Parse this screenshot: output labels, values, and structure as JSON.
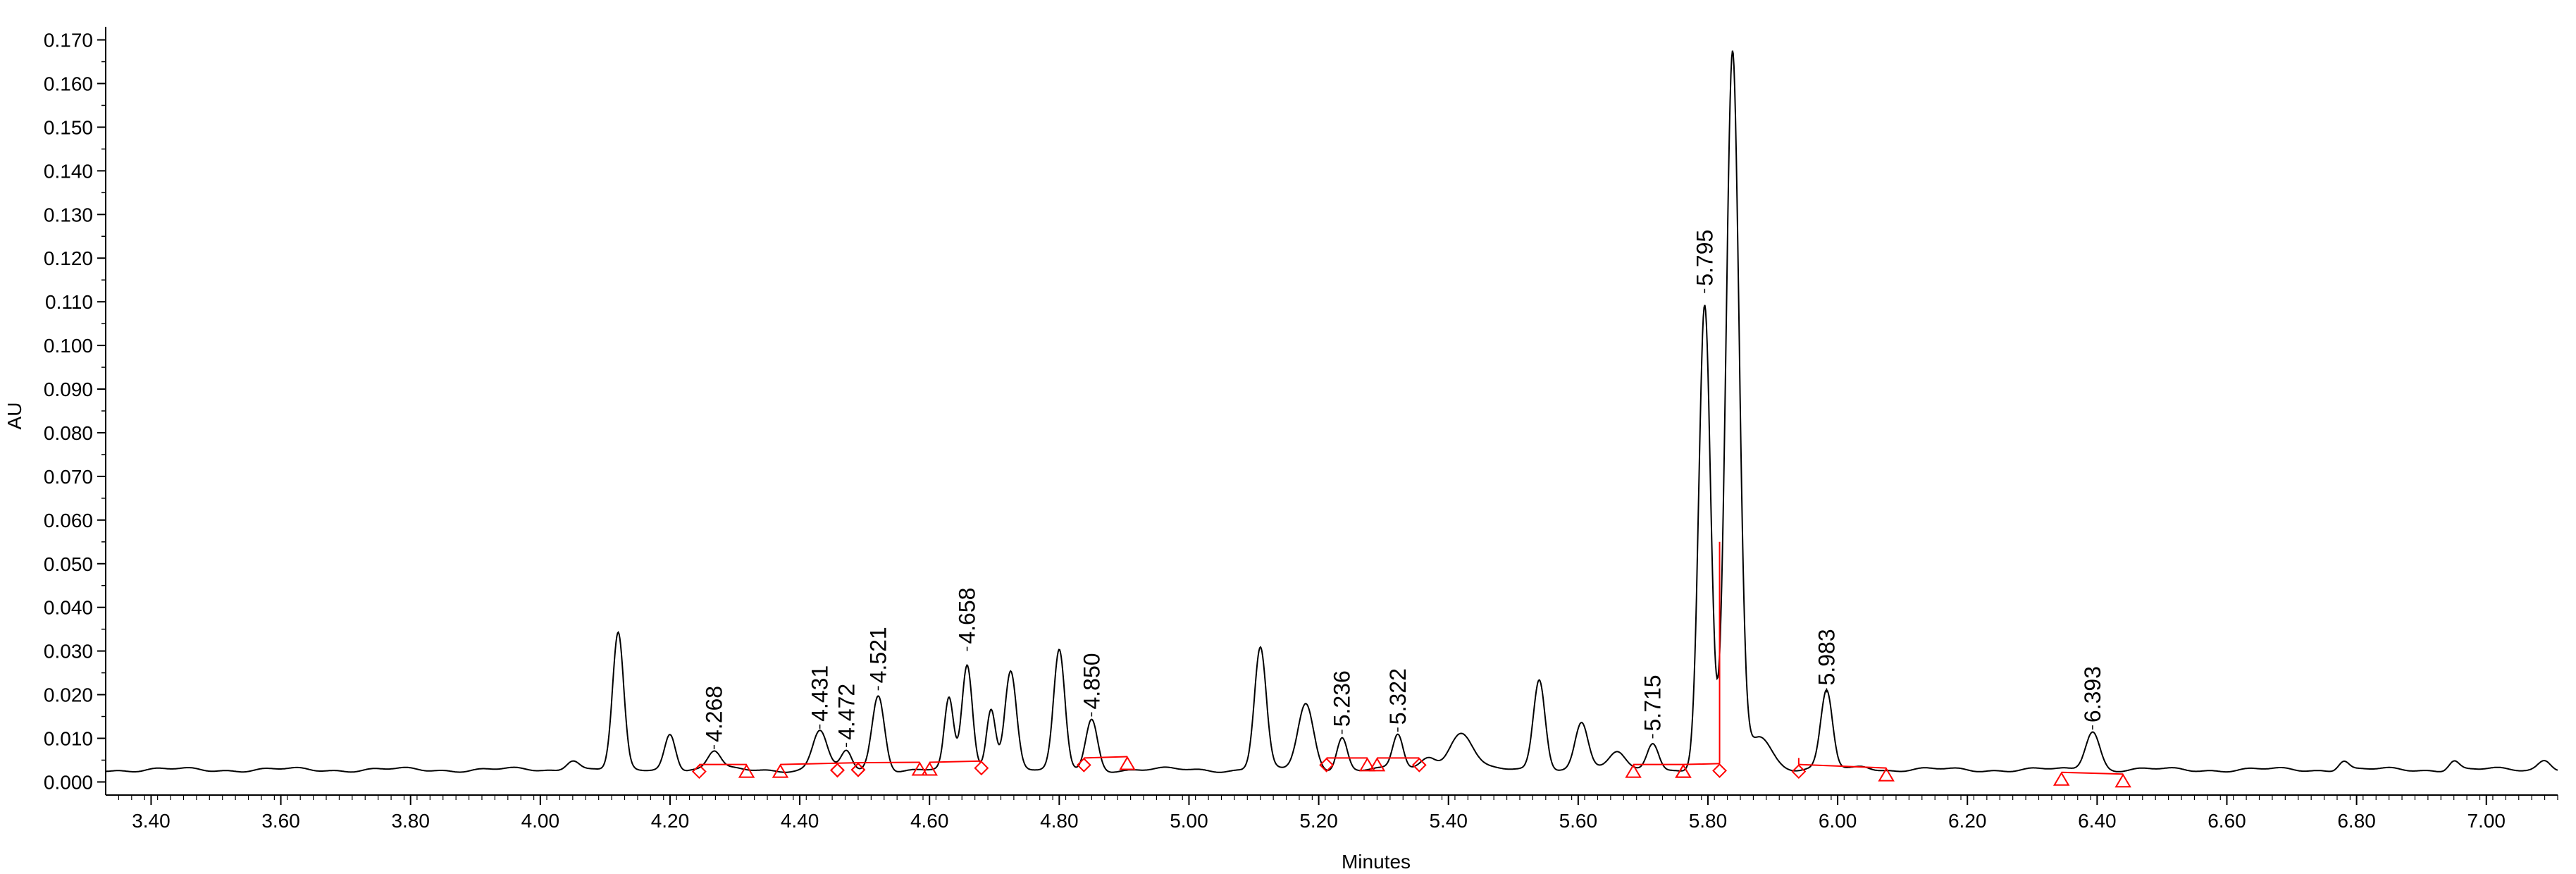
{
  "chart_data": {
    "type": "line",
    "xlabel": "Minutes",
    "ylabel": "AU",
    "xlim": [
      3.33,
      7.11
    ],
    "ylim": [
      -0.003,
      0.173
    ],
    "x_ticks": [
      "3.40",
      "3.60",
      "3.80",
      "4.00",
      "4.20",
      "4.40",
      "4.60",
      "4.80",
      "5.00",
      "5.20",
      "5.40",
      "5.60",
      "5.80",
      "6.00",
      "6.20",
      "6.40",
      "6.60",
      "6.80",
      "7.00"
    ],
    "y_ticks": [
      "0.000",
      "0.010",
      "0.020",
      "0.030",
      "0.040",
      "0.050",
      "0.060",
      "0.070",
      "0.080",
      "0.090",
      "0.100",
      "0.110",
      "0.120",
      "0.130",
      "0.140",
      "0.150",
      "0.160",
      "0.170"
    ],
    "grid": false,
    "line_color": "#000000",
    "integration_color": "#ff0000",
    "baseline": 0.0028,
    "peaks": [
      {
        "rt": 4.05,
        "height": 0.0025,
        "width": 0.01
      },
      {
        "rt": 4.12,
        "height": 0.031,
        "width": 0.0085
      },
      {
        "rt": 4.2,
        "height": 0.0085,
        "width": 0.0085
      },
      {
        "rt": 4.268,
        "height": 0.0042,
        "width": 0.01
      },
      {
        "rt": 4.431,
        "height": 0.009,
        "width": 0.011
      },
      {
        "rt": 4.472,
        "height": 0.004,
        "width": 0.008
      },
      {
        "rt": 4.521,
        "height": 0.017,
        "width": 0.0095
      },
      {
        "rt": 4.63,
        "height": 0.016,
        "width": 0.007
      },
      {
        "rt": 4.658,
        "height": 0.024,
        "width": 0.008
      },
      {
        "rt": 4.695,
        "height": 0.014,
        "width": 0.007
      },
      {
        "rt": 4.725,
        "height": 0.023,
        "width": 0.009
      },
      {
        "rt": 4.8,
        "height": 0.027,
        "width": 0.0085
      },
      {
        "rt": 4.85,
        "height": 0.0115,
        "width": 0.009
      },
      {
        "rt": 5.11,
        "height": 0.028,
        "width": 0.009
      },
      {
        "rt": 5.18,
        "height": 0.015,
        "width": 0.012
      },
      {
        "rt": 5.236,
        "height": 0.0075,
        "width": 0.008
      },
      {
        "rt": 5.322,
        "height": 0.008,
        "width": 0.008
      },
      {
        "rt": 5.37,
        "height": 0.003,
        "width": 0.012
      },
      {
        "rt": 5.42,
        "height": 0.0085,
        "width": 0.018
      },
      {
        "rt": 5.54,
        "height": 0.021,
        "width": 0.009
      },
      {
        "rt": 5.605,
        "height": 0.011,
        "width": 0.01
      },
      {
        "rt": 5.66,
        "height": 0.004,
        "width": 0.012
      },
      {
        "rt": 5.715,
        "height": 0.0065,
        "width": 0.009
      },
      {
        "rt": 5.795,
        "height": 0.106,
        "width": 0.009
      },
      {
        "rt": 5.838,
        "height": 0.164,
        "width": 0.01
      },
      {
        "rt": 5.88,
        "height": 0.008,
        "width": 0.018
      },
      {
        "rt": 5.983,
        "height": 0.018,
        "width": 0.009
      },
      {
        "rt": 6.04,
        "height": 0.001,
        "width": 0.012
      },
      {
        "rt": 6.393,
        "height": 0.009,
        "width": 0.011
      },
      {
        "rt": 6.78,
        "height": 0.0022,
        "width": 0.008
      },
      {
        "rt": 6.95,
        "height": 0.0022,
        "width": 0.008
      },
      {
        "rt": 7.09,
        "height": 0.0025,
        "width": 0.01
      }
    ],
    "labeled_peaks": [
      {
        "label": "4.268",
        "x": 4.268,
        "y": 0.0075
      },
      {
        "label": "4.431",
        "x": 4.431,
        "y": 0.0122
      },
      {
        "label": "4.472",
        "x": 4.472,
        "y": 0.008
      },
      {
        "label": "4.521",
        "x": 4.521,
        "y": 0.021
      },
      {
        "label": "4.658",
        "x": 4.658,
        "y": 0.03
      },
      {
        "label": "4.850",
        "x": 4.85,
        "y": 0.015
      },
      {
        "label": "5.236",
        "x": 5.236,
        "y": 0.011
      },
      {
        "label": "5.322",
        "x": 5.322,
        "y": 0.0115
      },
      {
        "label": "5.715",
        "x": 5.715,
        "y": 0.01
      },
      {
        "label": "5.795",
        "x": 5.795,
        "y": 0.112
      },
      {
        "label": "5.983",
        "x": 5.983,
        "y": 0.0205
      },
      {
        "label": "6.393",
        "x": 6.393,
        "y": 0.012
      }
    ],
    "integration_baselines": [
      {
        "start": [
          4.245,
          0.004
        ],
        "end": [
          4.318,
          0.004
        ],
        "start_marker": "diamond",
        "end_marker": "triangle"
      },
      {
        "start": [
          4.37,
          0.004
        ],
        "end": [
          4.458,
          0.0043
        ],
        "start_marker": "triangle",
        "end_marker": "diamond"
      },
      {
        "start": [
          4.458,
          0.0043
        ],
        "end": [
          4.49,
          0.0044
        ],
        "start_marker": "diamond",
        "end_marker": "diamond"
      },
      {
        "start": [
          4.49,
          0.0044
        ],
        "end": [
          4.585,
          0.0045
        ],
        "start_marker": "diamond",
        "end_marker": "triangle"
      },
      {
        "start": [
          4.6,
          0.0045
        ],
        "end": [
          4.68,
          0.0048
        ],
        "start_marker": "triangle",
        "end_marker": "diamond"
      },
      {
        "start": [
          4.838,
          0.0055
        ],
        "end": [
          4.905,
          0.0058
        ],
        "start_marker": "diamond",
        "end_marker": "triangle"
      },
      {
        "start": [
          5.212,
          0.0055
        ],
        "end": [
          5.275,
          0.0055
        ],
        "start_marker": "diamond",
        "end_marker": "triangle"
      },
      {
        "start": [
          5.29,
          0.0055
        ],
        "end": [
          5.355,
          0.0055
        ],
        "start_marker": "triangle",
        "end_marker": "diamond"
      },
      {
        "start": [
          5.685,
          0.004
        ],
        "end": [
          5.762,
          0.004
        ],
        "start_marker": "triangle",
        "end_marker": "triangle"
      },
      {
        "start": [
          5.762,
          0.004
        ],
        "end": [
          5.818,
          0.0042
        ],
        "start_marker": "triangle",
        "end_marker": "diamond"
      },
      {
        "start": [
          5.94,
          0.004
        ],
        "end": [
          6.075,
          0.0032
        ],
        "start_marker": "diamond",
        "end_marker": "triangle"
      },
      {
        "start": [
          6.345,
          0.0022
        ],
        "end": [
          6.44,
          0.0018
        ],
        "start_marker": "triangle",
        "end_marker": "triangle"
      }
    ],
    "drop_lines": [
      {
        "x": 5.818,
        "y_from": 0.0042,
        "y_to": 0.055
      },
      {
        "x": 5.94,
        "y_from": 0.004,
        "y_to": 0.0055
      }
    ]
  }
}
